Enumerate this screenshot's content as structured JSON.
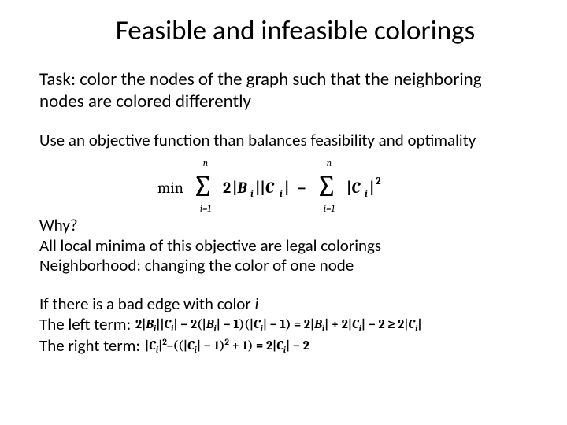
{
  "typography": {
    "title_fontsize": 35,
    "body_fontsize": 23,
    "sub_fontsize": 21,
    "font_family": "Calibri, Arial, sans-serif",
    "text_color": "#000000",
    "background_color": "#ffffff"
  },
  "title": "Feasible and infeasible colorings",
  "task": "Task: color the nodes of the graph such that the neighboring nodes are colored differently",
  "objective_intro": "Use an objective function than balances feasibility and optimality",
  "formula": {
    "type": "math",
    "min_label": "min",
    "sum_lower": "i=1",
    "sum_upper": "n",
    "term1_coef": "2",
    "term1_B": "|B",
    "term1_sub": "i",
    "term1_C": "||C",
    "term1_end": "|",
    "minus": "−",
    "term2_C": "|C",
    "term2_sub": "i",
    "term2_end": "|",
    "term2_exp": "2"
  },
  "why_block": {
    "line1": "Why?",
    "line2": "All local minima of this objective are legal colorings",
    "line3": "Neighborhood: changing the color of one node"
  },
  "bad_edge": {
    "line1_pre": "If there is a bad edge with color ",
    "line1_var": "i",
    "left_label": "The left term:",
    "left_math": "2|B_i||C_i| − 2(|B_i| − 1)(|C_i| − 1) = 2|B_i| + 2|C_i| − 2 ≥ 2|C_i|",
    "right_label": "The right term:",
    "right_math": "|C_i|²–((|C_i| − 1)² + 1) = 2|C_i| − 2"
  }
}
